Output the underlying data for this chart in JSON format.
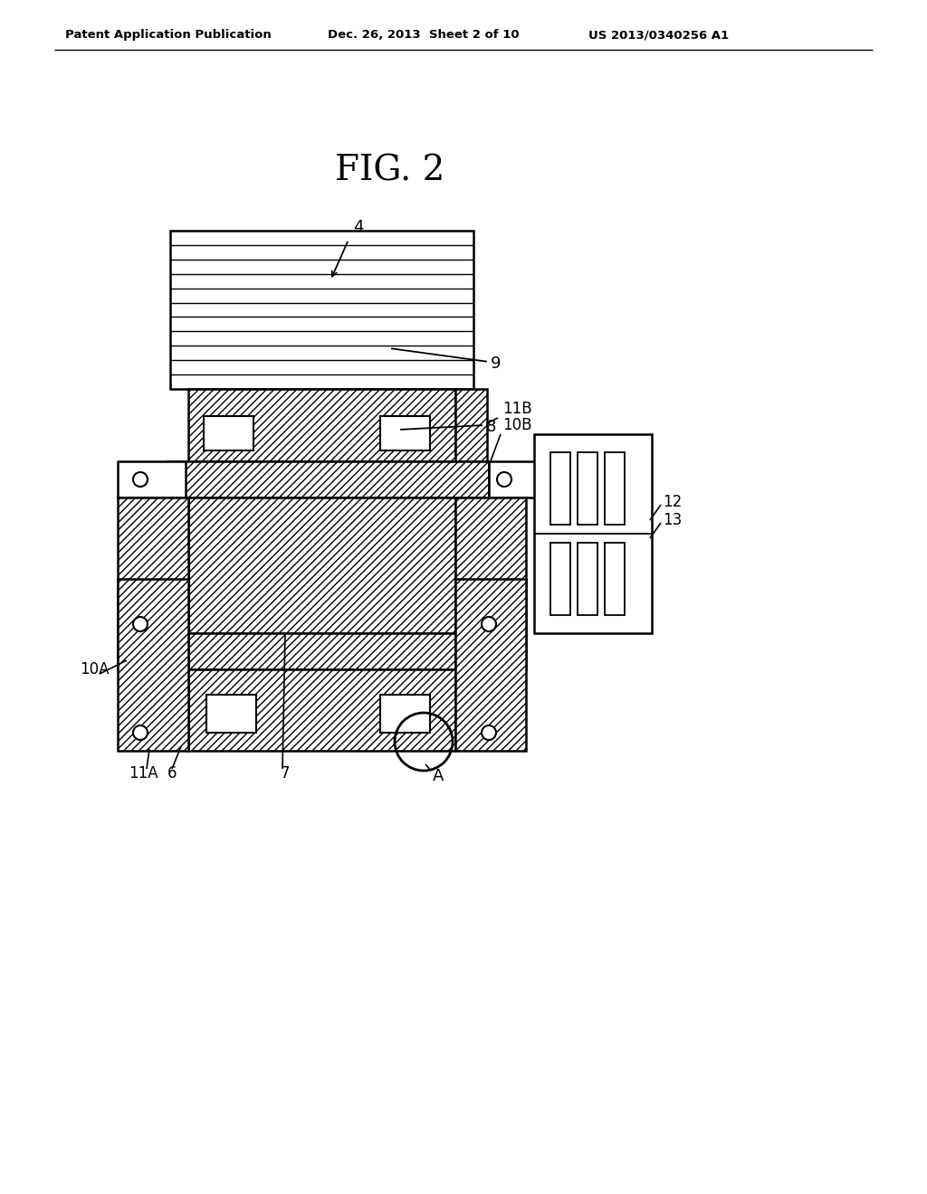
{
  "bg_color": "#ffffff",
  "line_color": "#000000",
  "hatch_color": "#000000",
  "title_text": "FIG. 2",
  "header_left": "Patent Application Publication",
  "header_mid": "Dec. 26, 2013  Sheet 2 of 10",
  "header_right": "US 2013/0340256 A1",
  "fig_width": 10.24,
  "fig_height": 13.2,
  "dpi": 100
}
